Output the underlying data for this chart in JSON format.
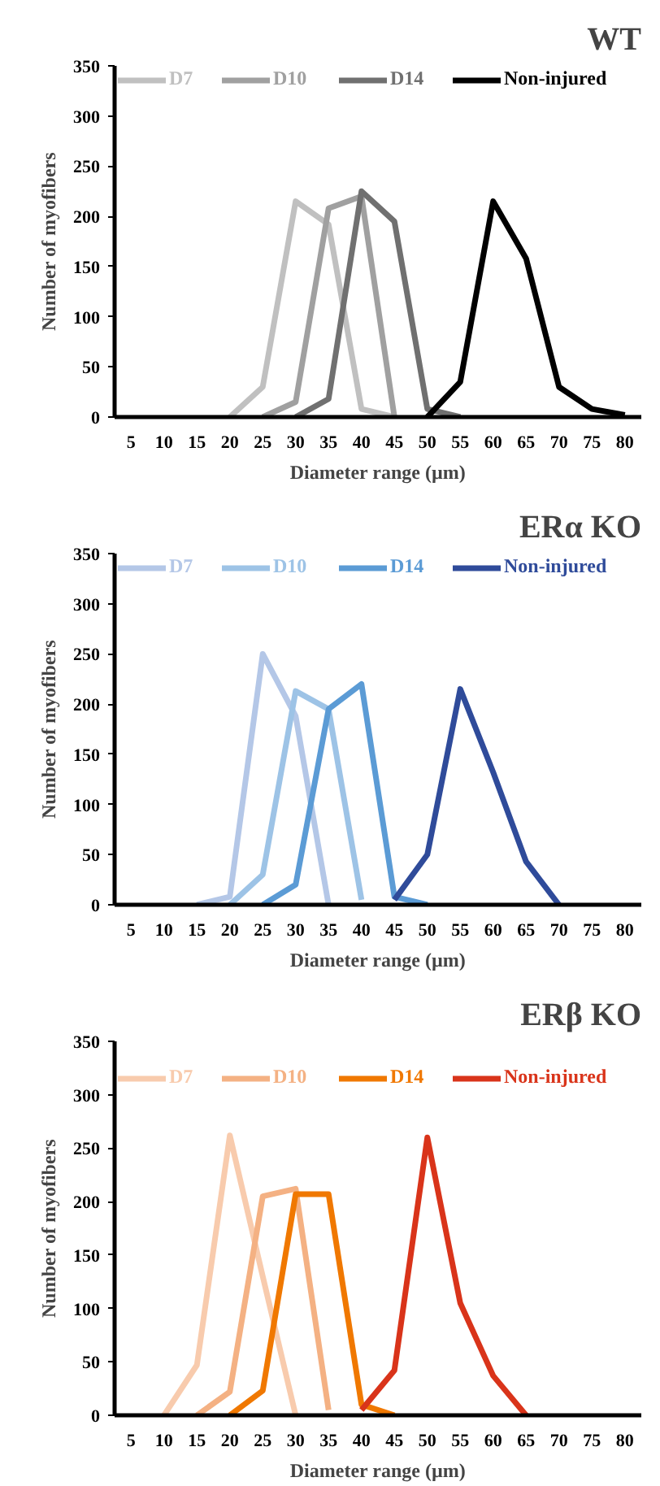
{
  "chart_data": [
    {
      "type": "line",
      "title": "WT",
      "xlabel": "Diameter range (µm)",
      "ylabel": "Number of myofibers",
      "categories": [
        "5",
        "10",
        "15",
        "20",
        "25",
        "30",
        "35",
        "40",
        "45",
        "50",
        "55",
        "60",
        "65",
        "70",
        "75",
        "80"
      ],
      "ylim": [
        0,
        350
      ],
      "yticks": [
        0,
        50,
        100,
        150,
        200,
        250,
        300,
        350
      ],
      "grid": false,
      "legend": "top",
      "series": [
        {
          "name": "D7",
          "color": "#c0c0c0",
          "values": [
            null,
            null,
            null,
            0,
            30,
            215,
            192,
            8,
            0,
            null,
            null,
            null,
            null,
            null,
            null,
            null
          ]
        },
        {
          "name": "D10",
          "color": "#a0a0a0",
          "values": [
            null,
            null,
            null,
            null,
            0,
            15,
            208,
            220,
            0,
            null,
            null,
            null,
            null,
            null,
            null,
            null
          ]
        },
        {
          "name": "D14",
          "color": "#707070",
          "values": [
            null,
            null,
            null,
            null,
            null,
            0,
            18,
            225,
            195,
            8,
            0,
            null,
            null,
            null,
            null,
            null
          ]
        },
        {
          "name": "Non-injured",
          "color": "#000000",
          "values": [
            null,
            null,
            null,
            null,
            null,
            null,
            null,
            null,
            null,
            0,
            35,
            215,
            158,
            30,
            8,
            2
          ]
        }
      ]
    },
    {
      "type": "line",
      "title": "ERα KO",
      "xlabel": "Diameter range (µm)",
      "ylabel": "Number of myofibers",
      "categories": [
        "5",
        "10",
        "15",
        "20",
        "25",
        "30",
        "35",
        "40",
        "45",
        "50",
        "55",
        "60",
        "65",
        "70",
        "75",
        "80"
      ],
      "ylim": [
        0,
        350
      ],
      "yticks": [
        0,
        50,
        100,
        150,
        200,
        250,
        300,
        350
      ],
      "grid": false,
      "legend": "top",
      "series": [
        {
          "name": "D7",
          "color": "#b4c7e7",
          "values": [
            null,
            null,
            0,
            8,
            250,
            188,
            0,
            null,
            null,
            null,
            null,
            null,
            null,
            null,
            null,
            null
          ]
        },
        {
          "name": "D10",
          "color": "#9dc3e6",
          "values": [
            null,
            null,
            null,
            0,
            30,
            213,
            195,
            5,
            null,
            null,
            null,
            null,
            null,
            null,
            null,
            null
          ]
        },
        {
          "name": "D14",
          "color": "#5b9bd5",
          "values": [
            null,
            null,
            null,
            null,
            0,
            20,
            195,
            220,
            8,
            0,
            null,
            null,
            null,
            null,
            null,
            null
          ]
        },
        {
          "name": "Non-injured",
          "color": "#2f4b9a",
          "values": [
            null,
            null,
            null,
            null,
            null,
            null,
            null,
            null,
            5,
            50,
            215,
            132,
            43,
            0,
            null,
            null
          ]
        }
      ]
    },
    {
      "type": "line",
      "title": "ERβ KO",
      "xlabel": "Diameter range (µm)",
      "ylabel": "Number of myofibers",
      "categories": [
        "5",
        "10",
        "15",
        "20",
        "25",
        "30",
        "35",
        "40",
        "45",
        "50",
        "55",
        "60",
        "65",
        "70",
        "75",
        "80"
      ],
      "ylim": [
        0,
        350
      ],
      "yticks": [
        0,
        50,
        100,
        150,
        200,
        250,
        300,
        350
      ],
      "grid": false,
      "legend": "top",
      "series": [
        {
          "name": "D7",
          "color": "#f8cbad",
          "values": [
            null,
            0,
            47,
            262,
            130,
            0,
            null,
            null,
            null,
            null,
            null,
            null,
            null,
            null,
            null,
            null
          ]
        },
        {
          "name": "D10",
          "color": "#f4b183",
          "values": [
            null,
            null,
            0,
            22,
            205,
            212,
            5,
            null,
            null,
            null,
            null,
            null,
            null,
            null,
            null,
            null
          ]
        },
        {
          "name": "D14",
          "color": "#f07800",
          "values": [
            null,
            null,
            null,
            0,
            23,
            207,
            207,
            10,
            0,
            null,
            null,
            null,
            null,
            null,
            null,
            null
          ]
        },
        {
          "name": "Non-injured",
          "color": "#d9341a",
          "values": [
            null,
            null,
            null,
            null,
            null,
            null,
            null,
            5,
            42,
            260,
            105,
            37,
            0,
            null,
            null,
            null
          ]
        }
      ]
    }
  ]
}
